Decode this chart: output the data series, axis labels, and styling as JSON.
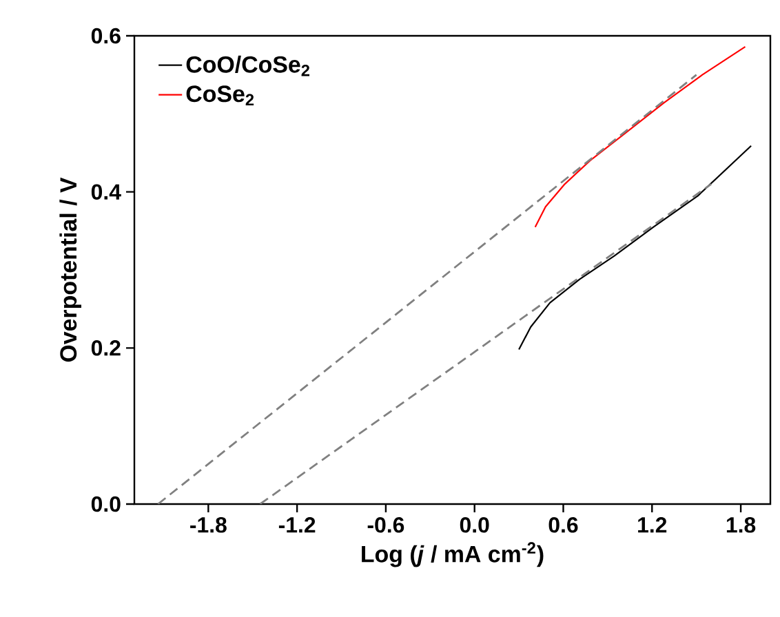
{
  "chart_data": {
    "type": "line",
    "xlabel": "Log (*j* / mA cm$^{-2}$)",
    "ylabel": "Overpotential / V",
    "xlim": [
      -2.3,
      2.0
    ],
    "ylim": [
      0,
      0.6
    ],
    "xticks": [
      -1.8,
      -1.2,
      -0.6,
      {
        "value": 0,
        "label": "0.0"
      },
      0.6,
      1.2,
      1.8
    ],
    "yticks": [
      {
        "value": 0,
        "label": "0.0"
      },
      0.2,
      0.4,
      0.6
    ],
    "legend": "top left",
    "grid": false,
    "marker": "none",
    "series": [
      {
        "name": "CoO/CoSe$_{2}$",
        "color": "#000000",
        "line_style": "solid",
        "x": [
          0.3,
          0.38,
          0.51,
          0.71,
          0.945,
          1.21,
          1.51,
          1.87
        ],
        "values": [
          0.198,
          0.227,
          0.258,
          0.288,
          0.318,
          0.355,
          0.395,
          0.459
        ]
      },
      {
        "name": "CoSe$_{2}$",
        "color": "#ff0000",
        "line_style": "solid",
        "x": [
          0.41,
          0.48,
          0.61,
          0.78,
          1.01,
          1.28,
          1.54,
          1.83
        ],
        "values": [
          0.355,
          0.381,
          0.41,
          0.44,
          0.474,
          0.514,
          0.55,
          0.586
        ]
      },
      {
        "color": "#808080",
        "line_style": "dashed",
        "x": [
          -2.14,
          1.5
        ],
        "values": [
          0.0,
          0.55
        ]
      },
      {
        "color": "#808080",
        "line_style": "dashed",
        "x": [
          -1.45,
          1.6
        ],
        "values": [
          0.0,
          0.41
        ]
      }
    ]
  }
}
